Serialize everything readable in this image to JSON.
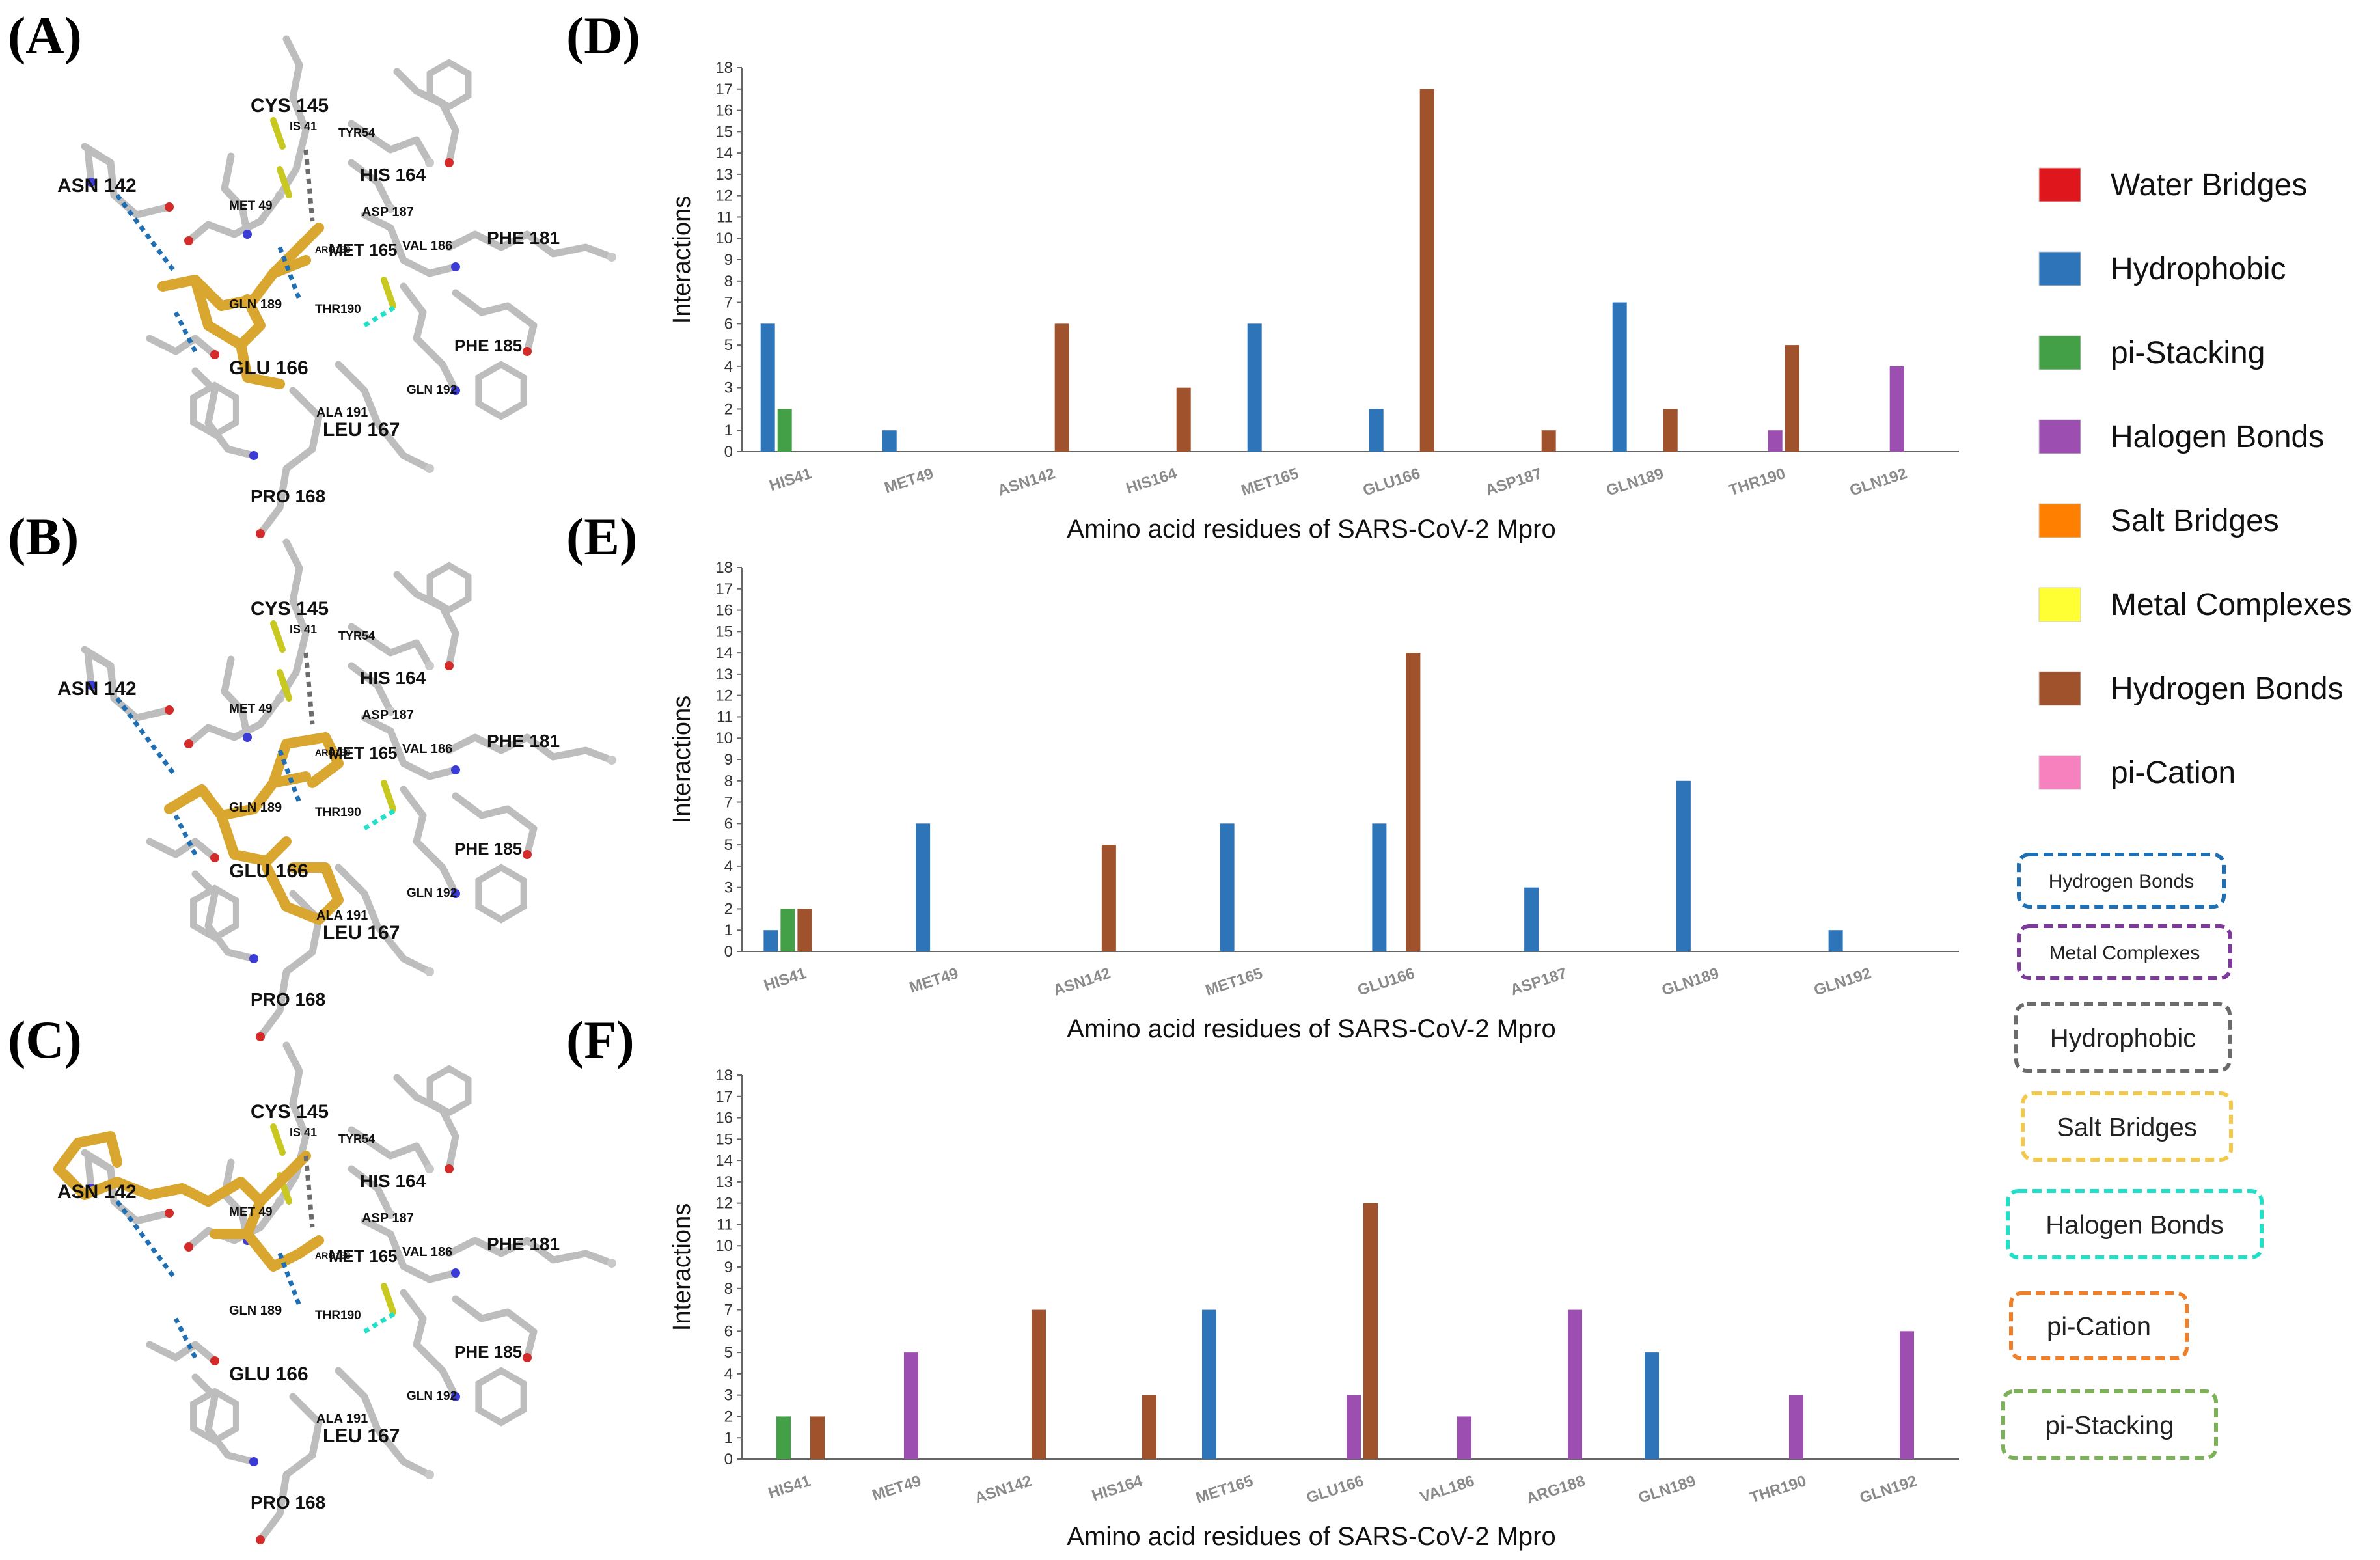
{
  "panel_letters": [
    "(A)",
    "(B)",
    "(C)",
    "(D)",
    "(E)",
    "(F)"
  ],
  "structures": [
    {
      "labels": [
        "CYS 145",
        "IS 41",
        "TYR54",
        "ASN 142",
        "HIS 164",
        "MET 49",
        "ASP 187",
        "PHE 181",
        "MET 165",
        "ARG188",
        "VAL 186",
        "GLN 189",
        "THR190",
        "GLU 166",
        "PHE 185",
        "GLN 192",
        "ALA 191",
        "LEU 167",
        "PRO 168"
      ],
      "ligand_shape": "A"
    },
    {
      "labels": [
        "CYS 145",
        "IS 41",
        "TYR54",
        "ASN 142",
        "HIS 164",
        "MET 49",
        "ASP 187",
        "PHE 181",
        "MET 165",
        "ARG188",
        "VAL 186",
        "GLN 189",
        "THR190",
        "GLU 166",
        "PHE 185",
        "GLN 192",
        "ALA 191",
        "LEU 167",
        "PRO 168"
      ],
      "ligand_shape": "B"
    },
    {
      "labels": [
        "CYS 145",
        "IS 41",
        "TYR54",
        "ASN 142",
        "HIS 164",
        "MET 49",
        "ASP 187",
        "PHE 181",
        "MET 165",
        "ARG188",
        "VAL 186",
        "GLN 189",
        "THR190",
        "GLU 166",
        "PHE 185",
        "GLN 192",
        "ALA 191",
        "LEU 167",
        "PRO 168"
      ],
      "ligand_shape": "C"
    }
  ],
  "chart_data": [
    {
      "type": "bar",
      "panel": "(D)",
      "xlabel": "Amino acid residues of SARS-CoV-2 Mpro",
      "ylabel": "Interactions",
      "ylim": [
        0,
        18
      ],
      "yticks": [
        0,
        1,
        2,
        3,
        4,
        5,
        6,
        7,
        8,
        9,
        10,
        11,
        12,
        13,
        14,
        15,
        16,
        17,
        18
      ],
      "categories": [
        "HIS41",
        "MET49",
        "ASN142",
        "HIS164",
        "MET165",
        "GLU166",
        "ASP187",
        "GLN189",
        "THR190",
        "GLN192"
      ],
      "series": [
        {
          "name": "Hydrophobic",
          "color": "#2e74b8",
          "values": [
            6,
            1,
            0,
            0,
            6,
            2,
            0,
            7,
            0,
            0
          ]
        },
        {
          "name": "pi-Stacking",
          "color": "#43a047",
          "values": [
            2,
            0,
            0,
            0,
            0,
            0,
            0,
            0,
            0,
            0
          ]
        },
        {
          "name": "Halogen Bonds",
          "color": "#9c4fb0",
          "values": [
            0,
            0,
            0,
            0,
            0,
            0,
            0,
            0,
            1,
            4
          ]
        },
        {
          "name": "Hydrogen Bonds",
          "color": "#a0522d",
          "values": [
            0,
            0,
            6,
            3,
            0,
            17,
            1,
            2,
            5,
            0
          ]
        }
      ]
    },
    {
      "type": "bar",
      "panel": "(E)",
      "xlabel": "Amino acid residues of SARS-CoV-2 Mpro",
      "ylabel": "Interactions",
      "ylim": [
        0,
        18
      ],
      "yticks": [
        0,
        1,
        2,
        3,
        4,
        5,
        6,
        7,
        8,
        9,
        10,
        11,
        12,
        13,
        14,
        15,
        16,
        17,
        18
      ],
      "categories": [
        "HIS41",
        "MET49",
        "ASN142",
        "MET165",
        "GLU166",
        "ASP187",
        "GLN189",
        "GLN192"
      ],
      "series": [
        {
          "name": "Hydrophobic",
          "color": "#2e74b8",
          "values": [
            1,
            6,
            0,
            6,
            6,
            3,
            8,
            1
          ]
        },
        {
          "name": "pi-Stacking",
          "color": "#43a047",
          "values": [
            2,
            0,
            0,
            0,
            0,
            0,
            0,
            0
          ]
        },
        {
          "name": "Hydrogen Bonds",
          "color": "#a0522d",
          "values": [
            2,
            0,
            5,
            0,
            14,
            0,
            0,
            0
          ]
        }
      ]
    },
    {
      "type": "bar",
      "panel": "(F)",
      "xlabel": "Amino acid residues of SARS-CoV-2 Mpro",
      "ylabel": "Interactions",
      "ylim": [
        0,
        18
      ],
      "yticks": [
        0,
        1,
        2,
        3,
        4,
        5,
        6,
        7,
        8,
        9,
        10,
        11,
        12,
        13,
        14,
        15,
        16,
        17,
        18
      ],
      "categories": [
        "HIS41",
        "MET49",
        "ASN142",
        "HIS164",
        "MET165",
        "GLU166",
        "VAL186",
        "ARG188",
        "GLN189",
        "THR190",
        "GLN192"
      ],
      "series": [
        {
          "name": "Hydrophobic",
          "color": "#2e74b8",
          "values": [
            0,
            0,
            0,
            0,
            7,
            0,
            0,
            0,
            5,
            0,
            0
          ]
        },
        {
          "name": "pi-Stacking",
          "color": "#43a047",
          "values": [
            2,
            0,
            0,
            0,
            0,
            0,
            0,
            0,
            0,
            0,
            0
          ]
        },
        {
          "name": "Halogen Bonds",
          "color": "#9c4fb0",
          "values": [
            0,
            5,
            0,
            0,
            0,
            3,
            2,
            7,
            0,
            3,
            6
          ]
        },
        {
          "name": "Hydrogen Bonds",
          "color": "#a0522d",
          "values": [
            2,
            0,
            7,
            3,
            0,
            12,
            0,
            0,
            0,
            0,
            0
          ]
        }
      ]
    }
  ],
  "legend": {
    "placement": "right",
    "entries": [
      {
        "label": "Water Bridges",
        "color": "#e0161d"
      },
      {
        "label": "Hydrophobic",
        "color": "#2e74b8"
      },
      {
        "label": "pi-Stacking",
        "color": "#43a047"
      },
      {
        "label": "Halogen Bonds",
        "color": "#9c4fb0"
      },
      {
        "label": "Salt Bridges",
        "color": "#ff7f00"
      },
      {
        "label": "Metal Complexes",
        "color": "#ffff33"
      },
      {
        "label": "Hydrogen Bonds",
        "color": "#a0522d"
      },
      {
        "label": "pi-Cation",
        "color": "#f781bf"
      }
    ]
  },
  "interaction_key": [
    {
      "label": "Hydrogen Bonds",
      "color": "#1f6fb2"
    },
    {
      "label": "Metal Complexes",
      "color": "#7e3a9a"
    },
    {
      "label": "Hydrophobic",
      "color": "#6b6b6b"
    },
    {
      "label": "Salt Bridges",
      "color": "#f2c94c"
    },
    {
      "label": "Halogen Bonds",
      "color": "#22e0c8"
    },
    {
      "label": "pi-Cation",
      "color": "#f07f2a"
    },
    {
      "label": "pi-Stacking",
      "color": "#7bb257"
    }
  ]
}
